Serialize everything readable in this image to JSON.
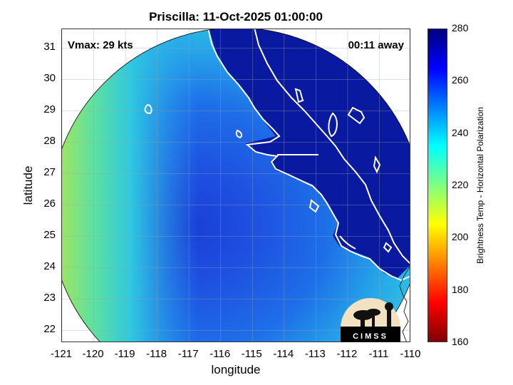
{
  "title": "Priscilla: 11-Oct-2025 01:00:00",
  "vmax_text": "Vmax: 29 kts",
  "away_text": "00:11 away",
  "xlabel": "longitude",
  "ylabel": "latitude",
  "colorbar": {
    "label": "Brightness Temp - Horizontal Polarization",
    "ticks": [
      "280",
      "260",
      "240",
      "220",
      "200",
      "180",
      "160"
    ],
    "range": [
      160,
      280
    ],
    "colors": [
      "#7f0000",
      "#ff0000",
      "#ff8000",
      "#ffff00",
      "#80ff80",
      "#00ffff",
      "#0080ff",
      "#0000ff",
      "#00007f"
    ]
  },
  "logo_text": "CIMSS",
  "chart_data": {
    "type": "heatmap",
    "title": "Priscilla: 11-Oct-2025 01:00:00",
    "xlabel": "longitude",
    "ylabel": "latitude",
    "xlim": [
      -121,
      -110
    ],
    "ylim": [
      21.6,
      31.6
    ],
    "xticks": [
      "-121",
      "-120",
      "-119",
      "-118",
      "-117",
      "-116",
      "-115",
      "-114",
      "-113",
      "-112",
      "-111",
      "-110"
    ],
    "yticks": [
      "31",
      "30",
      "29",
      "28",
      "27",
      "26",
      "25",
      "24",
      "23",
      "22"
    ],
    "grid": true,
    "colorbar_label": "Brightness Temp - Horizontal Polarization",
    "colorbar_range": [
      160,
      280
    ],
    "swath_center": [
      -115.5,
      26.6
    ],
    "swath_radius_deg": 5.5,
    "storm_center": [
      -116.2,
      25.5
    ],
    "land_value": 270,
    "ocean_min": 212,
    "ocean_max": 265
  }
}
